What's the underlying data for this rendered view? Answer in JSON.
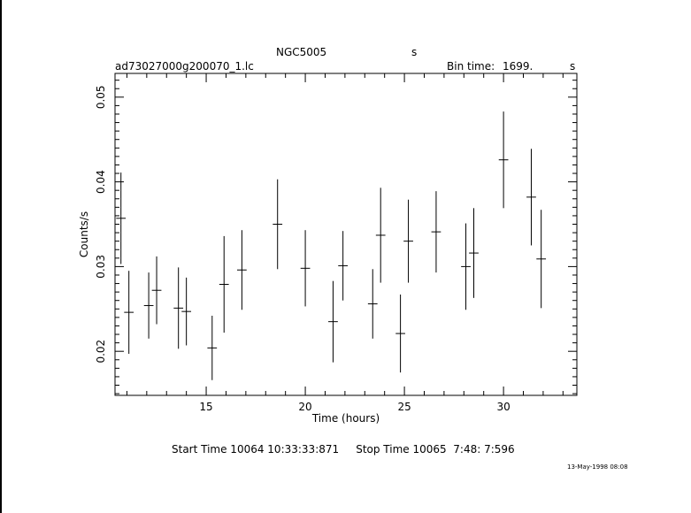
{
  "header": {
    "object": "NGC5005",
    "object_unit": "s",
    "filename": "ad73027000g200070_1.lc",
    "bin_time_label": "Bin time:",
    "bin_time_value": "1699.",
    "bin_time_unit": "s"
  },
  "footer": {
    "times": "Start Time 10064 10:33:33:871     Stop Time 10065  7:48: 7:596",
    "date_stamp": "13-May-1998 08:08"
  },
  "chart_data": {
    "type": "scatter",
    "title": "NGC5005",
    "xlabel": "Time (hours)",
    "ylabel": "Counts/s",
    "xlim": [
      10.4,
      33.7
    ],
    "ylim": [
      0.0148,
      0.0528
    ],
    "x_ticks": [
      15,
      20,
      25,
      30
    ],
    "y_ticks": [
      0.02,
      0.03,
      0.04,
      0.05
    ],
    "x_tick_labels": [
      "15",
      "20",
      "25",
      "30"
    ],
    "y_tick_labels": [
      "0.02",
      "0.03",
      "0.04",
      "0.05"
    ],
    "grid": false,
    "points": [
      {
        "x": 10.7,
        "y": 0.0357,
        "xerr": 0.24,
        "yerr": 0.0054
      },
      {
        "x": 11.1,
        "y": 0.0246,
        "xerr": 0.24,
        "yerr": 0.0049
      },
      {
        "x": 12.1,
        "y": 0.0254,
        "xerr": 0.24,
        "yerr": 0.0039
      },
      {
        "x": 12.5,
        "y": 0.0272,
        "xerr": 0.24,
        "yerr": 0.004
      },
      {
        "x": 13.6,
        "y": 0.0251,
        "xerr": 0.24,
        "yerr": 0.0048
      },
      {
        "x": 14.0,
        "y": 0.0247,
        "xerr": 0.24,
        "yerr": 0.004
      },
      {
        "x": 15.3,
        "y": 0.0204,
        "xerr": 0.24,
        "yerr": 0.0038
      },
      {
        "x": 15.9,
        "y": 0.0279,
        "xerr": 0.24,
        "yerr": 0.0057
      },
      {
        "x": 16.8,
        "y": 0.0296,
        "xerr": 0.24,
        "yerr": 0.0047
      },
      {
        "x": 18.6,
        "y": 0.035,
        "xerr": 0.24,
        "yerr": 0.0053
      },
      {
        "x": 20.0,
        "y": 0.0298,
        "xerr": 0.24,
        "yerr": 0.0045
      },
      {
        "x": 21.4,
        "y": 0.0235,
        "xerr": 0.24,
        "yerr": 0.0048
      },
      {
        "x": 21.9,
        "y": 0.0301,
        "xerr": 0.24,
        "yerr": 0.0041
      },
      {
        "x": 23.4,
        "y": 0.0256,
        "xerr": 0.24,
        "yerr": 0.0041
      },
      {
        "x": 23.8,
        "y": 0.0337,
        "xerr": 0.24,
        "yerr": 0.0056
      },
      {
        "x": 24.8,
        "y": 0.0221,
        "xerr": 0.24,
        "yerr": 0.0046
      },
      {
        "x": 25.2,
        "y": 0.033,
        "xerr": 0.24,
        "yerr": 0.0049
      },
      {
        "x": 26.6,
        "y": 0.0341,
        "xerr": 0.24,
        "yerr": 0.0048
      },
      {
        "x": 28.1,
        "y": 0.03,
        "xerr": 0.24,
        "yerr": 0.0051
      },
      {
        "x": 28.5,
        "y": 0.0316,
        "xerr": 0.24,
        "yerr": 0.0053
      },
      {
        "x": 30.0,
        "y": 0.0426,
        "xerr": 0.24,
        "yerr": 0.0057
      },
      {
        "x": 31.4,
        "y": 0.0382,
        "xerr": 0.24,
        "yerr": 0.0057
      },
      {
        "x": 31.9,
        "y": 0.0309,
        "xerr": 0.24,
        "yerr": 0.0058
      }
    ]
  }
}
